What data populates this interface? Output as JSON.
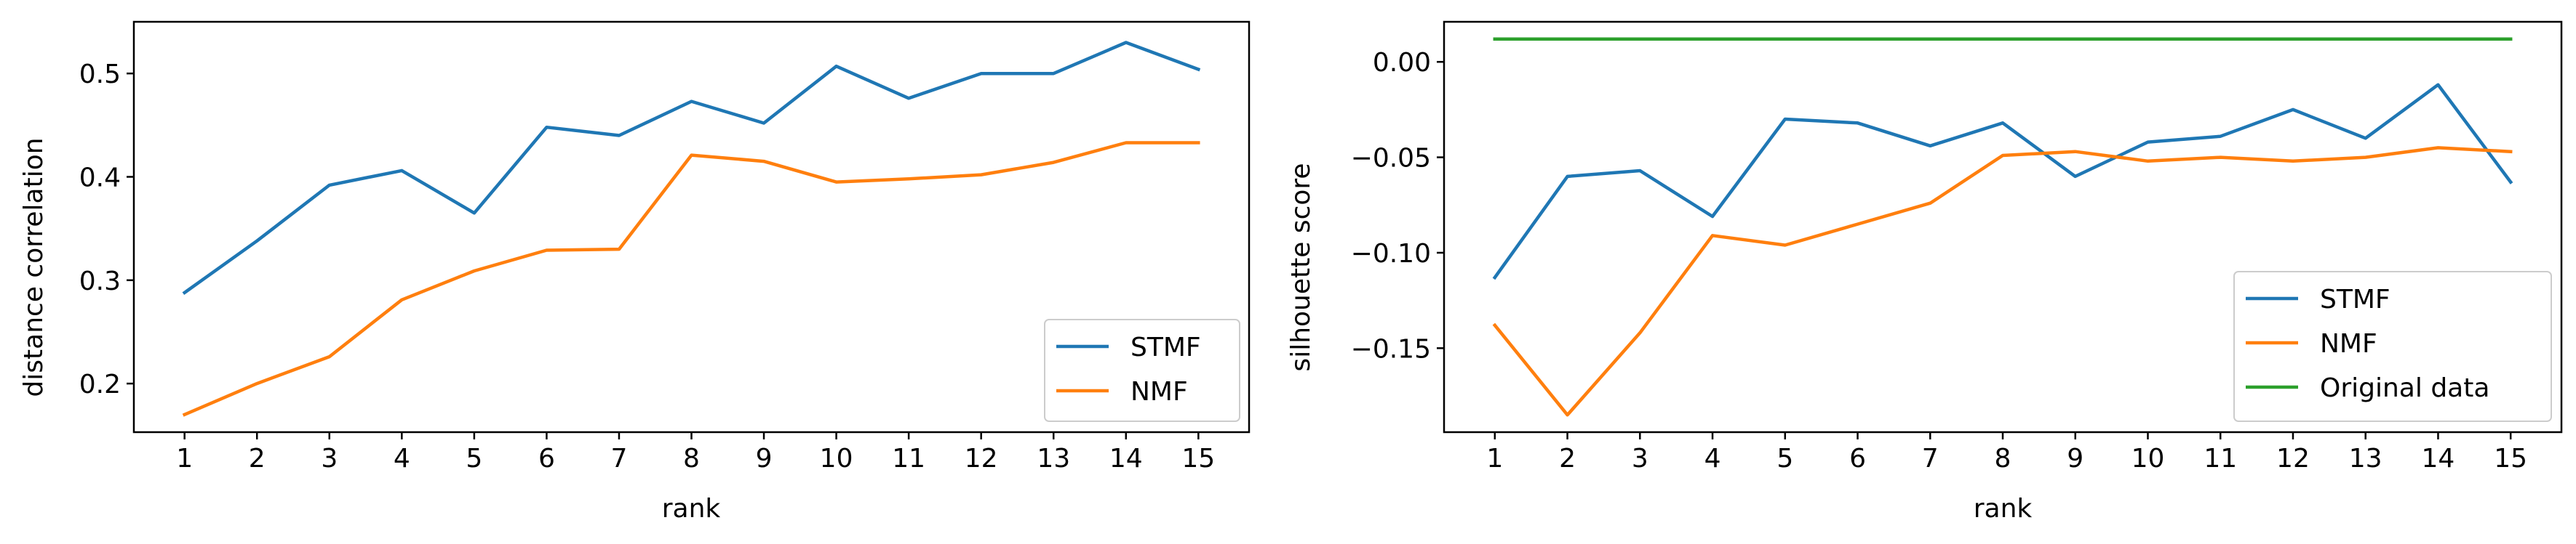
{
  "chart_data": [
    {
      "type": "line",
      "x": [
        1,
        2,
        3,
        4,
        5,
        6,
        7,
        8,
        9,
        10,
        11,
        12,
        13,
        14,
        15
      ],
      "xlabel": "rank",
      "ylabel": "distance correlation",
      "ylim": [
        0.153,
        0.55
      ],
      "yticks": [
        0.2,
        0.3,
        0.4,
        0.5
      ],
      "xticks": [
        1,
        2,
        3,
        4,
        5,
        6,
        7,
        8,
        9,
        10,
        11,
        12,
        13,
        14,
        15
      ],
      "grid": false,
      "legend_position": "lower-right",
      "series": [
        {
          "name": "STMF",
          "color": "#1f77b4",
          "values": [
            0.288,
            0.338,
            0.392,
            0.406,
            0.365,
            0.448,
            0.44,
            0.473,
            0.452,
            0.507,
            0.476,
            0.5,
            0.5,
            0.53,
            0.504
          ]
        },
        {
          "name": "NMF",
          "color": "#ff7f0e",
          "values": [
            0.17,
            0.2,
            0.226,
            0.281,
            0.309,
            0.329,
            0.33,
            0.421,
            0.415,
            0.395,
            0.398,
            0.402,
            0.414,
            0.433,
            0.433
          ]
        }
      ]
    },
    {
      "type": "line",
      "x": [
        1,
        2,
        3,
        4,
        5,
        6,
        7,
        8,
        9,
        10,
        11,
        12,
        13,
        14,
        15
      ],
      "xlabel": "rank",
      "ylabel": "silhouette score",
      "ylim": [
        -0.194,
        0.021
      ],
      "yticks": [
        0.0,
        -0.05,
        -0.1,
        -0.15
      ],
      "ytick_labels": [
        "0.00",
        "−0.05",
        "−0.10",
        "−0.15"
      ],
      "xticks": [
        1,
        2,
        3,
        4,
        5,
        6,
        7,
        8,
        9,
        10,
        11,
        12,
        13,
        14,
        15
      ],
      "grid": false,
      "legend_position": "lower-right",
      "series": [
        {
          "name": "STMF",
          "color": "#1f77b4",
          "values": [
            -0.113,
            -0.06,
            -0.057,
            -0.081,
            -0.03,
            -0.032,
            -0.044,
            -0.032,
            -0.06,
            -0.042,
            -0.039,
            -0.025,
            -0.04,
            -0.012,
            -0.063
          ]
        },
        {
          "name": "NMF",
          "color": "#ff7f0e",
          "values": [
            -0.138,
            -0.185,
            -0.142,
            -0.091,
            -0.096,
            -0.085,
            -0.074,
            -0.049,
            -0.047,
            -0.052,
            -0.05,
            -0.052,
            -0.05,
            -0.045,
            -0.047
          ]
        },
        {
          "name": "Original data",
          "color": "#2ca02c",
          "values": [
            0.012,
            0.012,
            0.012,
            0.012,
            0.012,
            0.012,
            0.012,
            0.012,
            0.012,
            0.012,
            0.012,
            0.012,
            0.012,
            0.012,
            0.012
          ]
        }
      ]
    }
  ]
}
